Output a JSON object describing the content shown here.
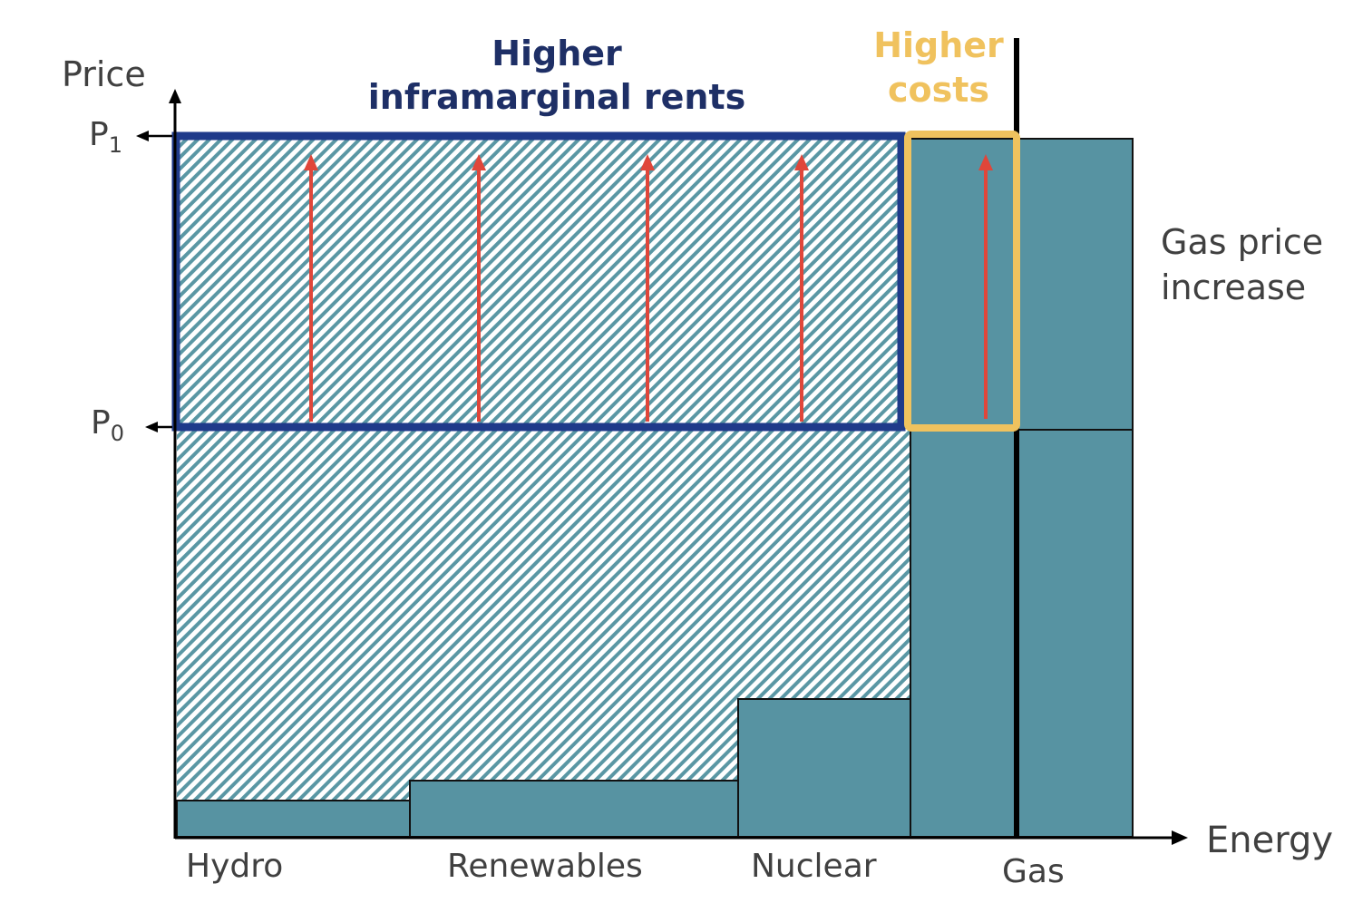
{
  "colors": {
    "teal": "#5793a2",
    "navy": "#1f3a8a",
    "gold": "#f0c25e",
    "red_arrow": "#e0463a",
    "axis": "#000000",
    "text": "#404040",
    "hatch": "#5a97a4"
  },
  "axes": {
    "y_label": "Price",
    "x_label": "Energy",
    "p1_main": "P",
    "p1_sub": "1",
    "p0_main": "P",
    "p0_sub": "0"
  },
  "categories": [
    "Hydro",
    "Renewables",
    "Nuclear",
    "Gas"
  ],
  "annotations": {
    "rents_line1": "Higher",
    "rents_line2": "inframarginal rents",
    "costs_line1": "Higher",
    "costs_line2": "costs",
    "gas_line1": "Gas price",
    "gas_line2": "increase"
  }
}
